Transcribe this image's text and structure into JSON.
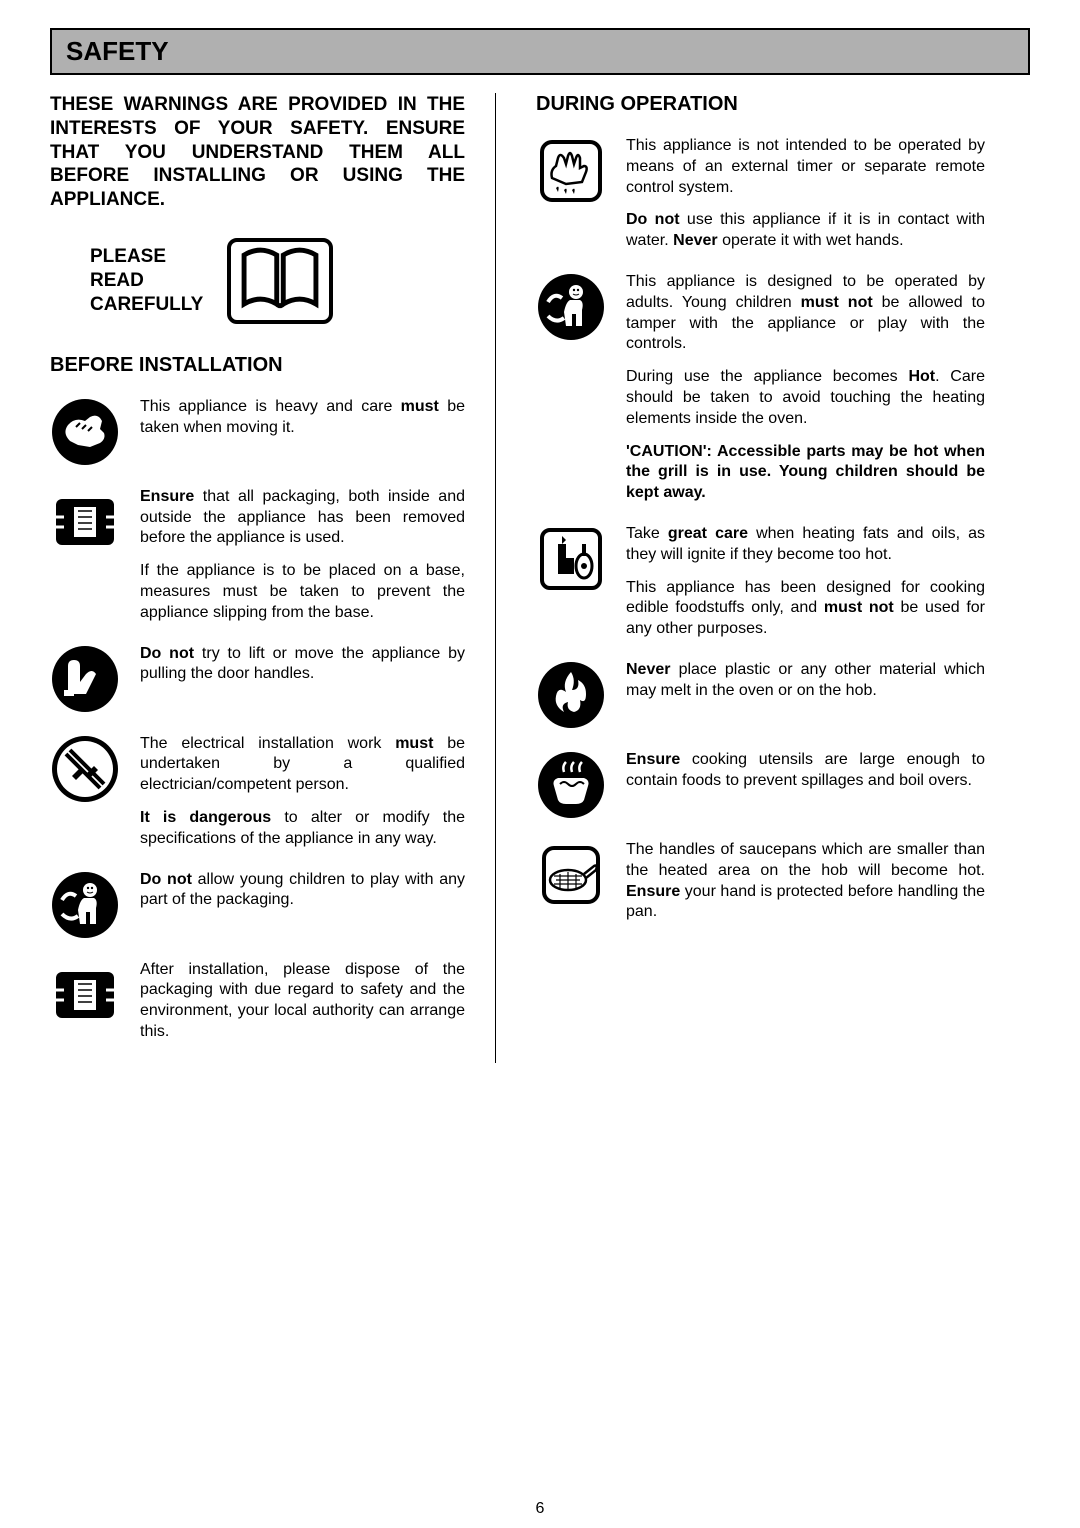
{
  "header": {
    "title": "SAFETY"
  },
  "left": {
    "intro": "THESE WARNINGS ARE PROVIDED IN THE INTERESTS OF YOUR SAFETY. ENSURE THAT YOU UNDERSTAND THEM ALL BEFORE INSTALLING OR USING THE APPLIANCE.",
    "please_read": "PLEASE READ CAREFULLY",
    "section_title": "BEFORE INSTALLATION",
    "items": [
      {
        "icon": "lift-hand",
        "paras": [
          "This appliance is heavy and care <b>must</b> be taken when moving it."
        ]
      },
      {
        "icon": "packaging",
        "paras": [
          "<b>Ensure</b> that all packaging, both inside and outside the appliance has been removed before the appliance is used.",
          "If the appliance is to be placed on a base, measures must be taken to prevent the appliance slipping from the base."
        ]
      },
      {
        "icon": "no-pull",
        "paras": [
          "<b>Do not</b> try to lift or move the appliance by pulling the door handles."
        ]
      },
      {
        "icon": "no-modify",
        "paras": [
          "The electrical installation work <b>must</b> be undertaken by a qualified electrician/competent person.",
          "<b>It is dangerous</b> to alter or modify the specifications of the appliance in any way."
        ]
      },
      {
        "icon": "child",
        "paras": [
          "<b>Do not</b> allow young children to play with any part of the packaging."
        ]
      },
      {
        "icon": "packaging",
        "paras": [
          "After installation, please dispose of the packaging with due regard to safety and the environment, your local authority can arrange this."
        ]
      }
    ]
  },
  "right": {
    "section_title": "DURING OPERATION",
    "items": [
      {
        "icon": "wet-hand",
        "paras": [
          "This appliance is not intended to be operated by means of an external timer or separate remote control system.",
          "<b>Do not</b> use this appliance if it is in contact with water. <b>Never</b> operate it with wet hands."
        ]
      },
      {
        "icon": "child",
        "paras": [
          "This appliance is designed to be operated by adults. Young children <b>must not</b> be allowed to tamper with the appliance or play with the controls.",
          "During use the appliance becomes <b>Hot</b>. Care should be taken to avoid touching the heating elements inside the oven.",
          "<b>'CAUTION': Accessible parts may be hot when the grill is in use. Young children should be kept away.</b>"
        ]
      },
      {
        "icon": "hot-oil",
        "paras": [
          "Take <b>great care</b> when heating fats and oils, as they will ignite if they become too hot.",
          "This appliance has been designed for cooking edible foodstuffs only, and <b>must not</b> be used for any other purposes."
        ]
      },
      {
        "icon": "fire",
        "paras": [
          "<b>Never</b> place plastic or any other material which may melt in the oven or on the hob."
        ]
      },
      {
        "icon": "pot-boil",
        "paras": [
          "<b>Ensure</b> cooking utensils are large enough to contain foods to prevent spillages and boil overs."
        ]
      },
      {
        "icon": "saucepan",
        "paras": [
          "The handles of saucepans which are smaller than the heated area on the hob will become hot. <b>Ensure</b> your hand is protected before handling the pan."
        ]
      }
    ]
  },
  "page_number": "6"
}
